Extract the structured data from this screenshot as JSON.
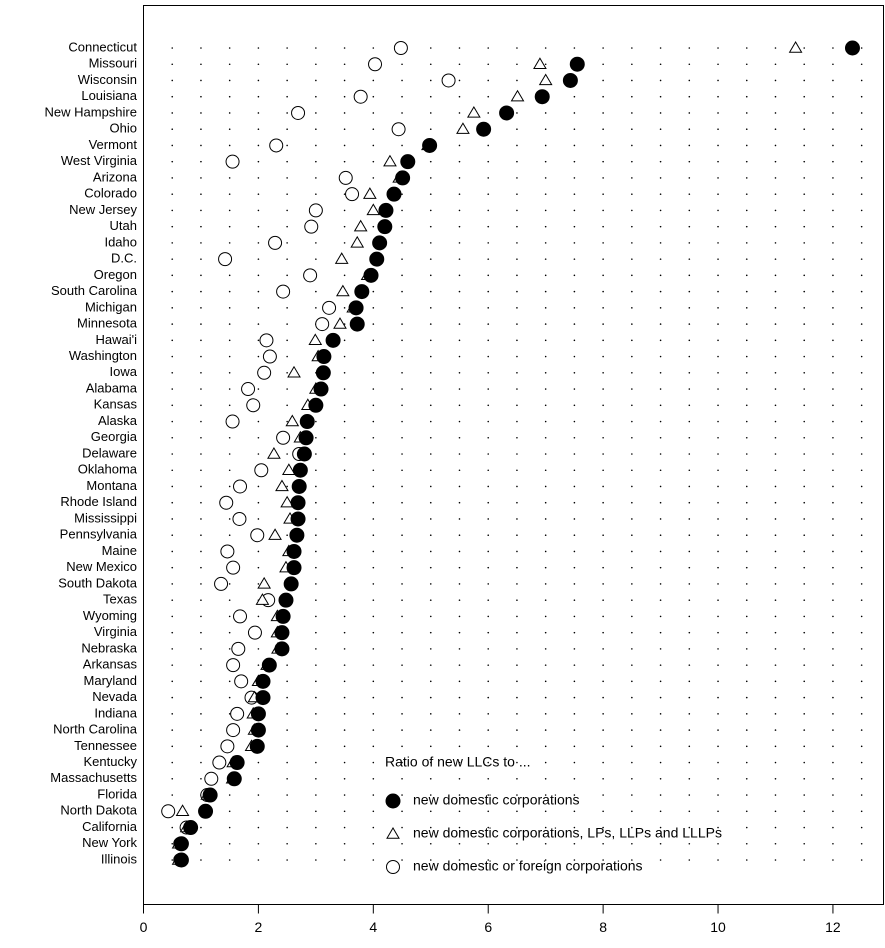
{
  "chart_data": {
    "type": "dot",
    "legend_title": "Ratio of new LLCs to ...",
    "categories": [
      "Connecticut",
      "Missouri",
      "Wisconsin",
      "Louisiana",
      "New Hampshire",
      "Ohio",
      "Vermont",
      "West Virginia",
      "Arizona",
      "Colorado",
      "New Jersey",
      "Utah",
      "Idaho",
      "D.C.",
      "Oregon",
      "South Carolina",
      "Michigan",
      "Minnesota",
      "Hawai'i",
      "Washington",
      "Iowa",
      "Alabama",
      "Kansas",
      "Alaska",
      "Georgia",
      "Delaware",
      "Oklahoma",
      "Montana",
      "Rhode Island",
      "Mississippi",
      "Pennsylvania",
      "Maine",
      "New Mexico",
      "South Dakota",
      "Texas",
      "Wyoming",
      "Virginia",
      "Nebraska",
      "Arkansas",
      "Maryland",
      "Nevada",
      "Indiana",
      "North Carolina",
      "Tennessee",
      "Kentucky",
      "Massachusetts",
      "Florida",
      "North Dakota",
      "California",
      "New York",
      "Illinois"
    ],
    "series": [
      {
        "name": "new domestic corporations",
        "color": "#000000",
        "marker": "circle",
        "filled": true,
        "values": [
          12.34,
          7.55,
          7.43,
          6.94,
          6.32,
          5.92,
          4.98,
          4.6,
          4.51,
          4.36,
          4.22,
          4.2,
          4.11,
          4.06,
          3.96,
          3.8,
          3.7,
          3.72,
          3.3,
          3.14,
          3.13,
          3.09,
          3.0,
          2.85,
          2.83,
          2.8,
          2.73,
          2.71,
          2.69,
          2.69,
          2.67,
          2.62,
          2.62,
          2.57,
          2.48,
          2.43,
          2.41,
          2.41,
          2.19,
          2.08,
          2.08,
          2.0,
          2.0,
          1.98,
          1.63,
          1.58,
          1.16,
          1.08,
          0.82,
          0.66,
          0.66
        ]
      },
      {
        "name": "new domestic corporations, LPs, LLPs and LLLPs",
        "color": "#000000",
        "marker": "triangle",
        "filled": false,
        "values": [
          11.35,
          6.9,
          7.0,
          6.51,
          5.75,
          5.56,
          4.95,
          4.29,
          4.45,
          3.94,
          4.0,
          3.78,
          3.72,
          3.45,
          3.9,
          3.47,
          3.65,
          3.42,
          2.99,
          3.04,
          2.62,
          3.0,
          2.86,
          2.59,
          2.73,
          2.27,
          2.53,
          2.41,
          2.5,
          2.55,
          2.29,
          2.53,
          2.48,
          2.1,
          2.07,
          2.33,
          2.33,
          2.34,
          2.15,
          2.0,
          1.93,
          1.91,
          1.93,
          1.88,
          1.56,
          1.55,
          1.11,
          0.68,
          0.75,
          0.61,
          0.61
        ]
      },
      {
        "name": "new domestic or foreign corporations",
        "color": "#000000",
        "marker": "circle",
        "filled": false,
        "values": [
          4.48,
          4.03,
          5.31,
          3.78,
          2.69,
          4.44,
          2.31,
          1.55,
          3.52,
          3.63,
          3.0,
          2.92,
          2.29,
          1.42,
          2.9,
          2.43,
          3.23,
          3.11,
          2.14,
          2.2,
          2.1,
          1.82,
          1.91,
          1.55,
          2.43,
          2.71,
          2.05,
          1.68,
          1.44,
          1.67,
          1.98,
          1.46,
          1.56,
          1.35,
          2.17,
          1.68,
          1.94,
          1.65,
          1.56,
          1.7,
          1.88,
          1.63,
          1.56,
          1.46,
          1.32,
          1.18,
          1.11,
          0.43,
          0.75,
          0.64,
          0.64
        ]
      }
    ],
    "xlim": [
      0,
      12.88
    ],
    "xticks": [
      0,
      2,
      4,
      6,
      8,
      10,
      12
    ],
    "grid": true
  }
}
